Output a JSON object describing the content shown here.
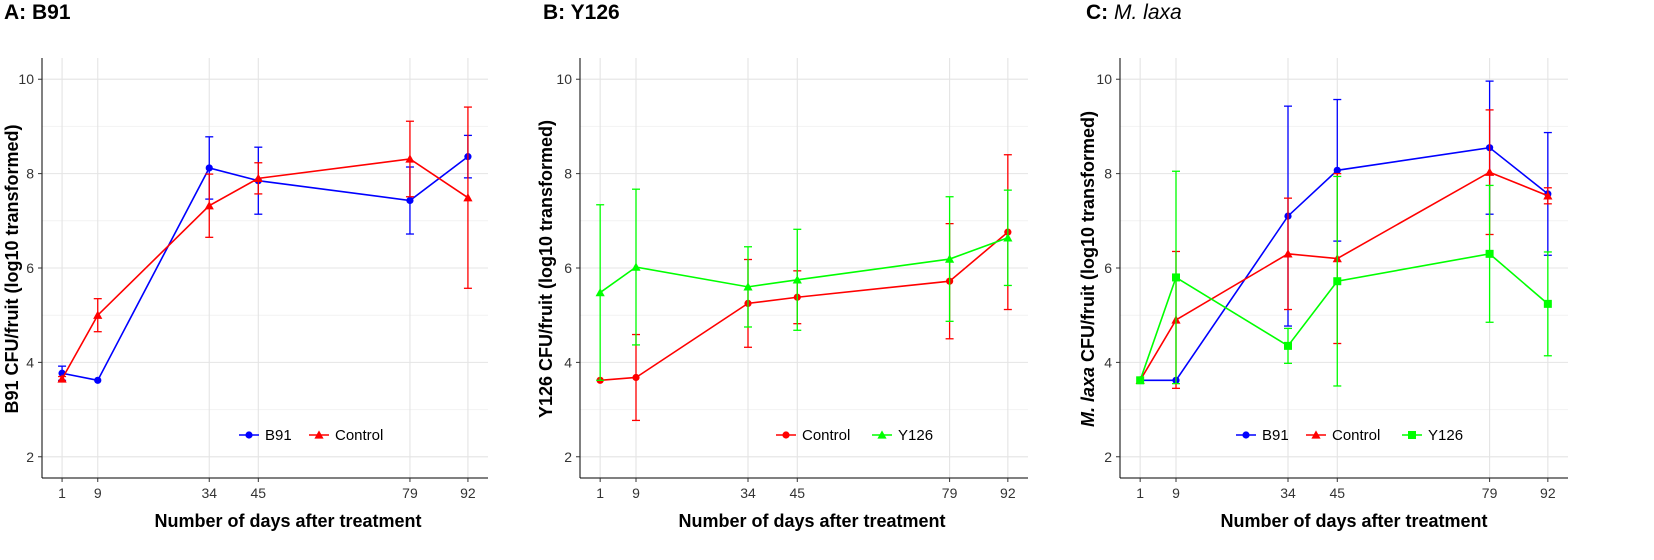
{
  "chart_data": [
    {
      "type": "line",
      "panel_label": "A:",
      "panel_name": "B91",
      "panel_name_italic": false,
      "xlabel": "Number of days after treatment",
      "ylabel": "B91 CFU/fruit (log10 transformed)",
      "ylabel_italic_prefix": "",
      "ylabel_rest": "B91 CFU/fruit (log10 transformed)",
      "x_ticks": [
        1,
        9,
        34,
        45,
        79,
        92
      ],
      "y_ticks": [
        2,
        4,
        6,
        8,
        10
      ],
      "xlim": [
        -3.5,
        96.5
      ],
      "ylim": [
        1.55,
        10.45
      ],
      "grid": true,
      "legend_position": "bottom-right",
      "series": [
        {
          "name": "B91",
          "color": "#0000ff",
          "marker": "circle",
          "x": [
            1,
            9,
            34,
            45,
            79,
            92
          ],
          "y": [
            3.77,
            3.62,
            8.12,
            7.85,
            7.43,
            8.36
          ],
          "err": [
            0.15,
            0.0,
            0.66,
            0.71,
            0.71,
            0.45
          ]
        },
        {
          "name": "Control",
          "color": "#ff0000",
          "marker": "triangle",
          "x": [
            1,
            9,
            34,
            45,
            79,
            92
          ],
          "y": [
            3.65,
            5.0,
            7.32,
            7.9,
            8.31,
            7.49
          ],
          "err": [
            0.05,
            0.35,
            0.67,
            0.33,
            0.8,
            1.92
          ]
        }
      ]
    },
    {
      "type": "line",
      "panel_label": "B:",
      "panel_name": "Y126",
      "panel_name_italic": false,
      "xlabel": "Number of days after treatment",
      "ylabel": "Y126 CFU/fruit (log10 transformed)",
      "ylabel_italic_prefix": "",
      "ylabel_rest": "Y126 CFU/fruit (log10 transformed)",
      "x_ticks": [
        1,
        9,
        34,
        45,
        79,
        92
      ],
      "y_ticks": [
        2,
        4,
        6,
        8,
        10
      ],
      "xlim": [
        -3.5,
        96.5
      ],
      "ylim": [
        1.55,
        10.45
      ],
      "grid": true,
      "legend_position": "bottom-right",
      "series": [
        {
          "name": "Control",
          "color": "#ff0000",
          "marker": "circle",
          "x": [
            1,
            9,
            34,
            45,
            79,
            92
          ],
          "y": [
            3.62,
            3.68,
            5.25,
            5.38,
            5.72,
            6.76
          ],
          "err": [
            0.0,
            0.91,
            0.93,
            0.56,
            1.22,
            1.64
          ]
        },
        {
          "name": "Y126",
          "color": "#00ff00",
          "marker": "triangle",
          "x": [
            1,
            9,
            34,
            45,
            79,
            92
          ],
          "y": [
            5.48,
            6.02,
            5.6,
            5.75,
            6.19,
            6.64
          ],
          "err": [
            1.86,
            1.65,
            0.85,
            1.07,
            1.32,
            1.01
          ]
        }
      ]
    },
    {
      "type": "line",
      "panel_label": "C:",
      "panel_name": "M. laxa",
      "panel_name_italic": true,
      "xlabel": "Number of days after treatment",
      "ylabel": "M. laxa CFU/fruit (log10 transformed)",
      "ylabel_italic_prefix": "M. laxa",
      "ylabel_rest": " CFU/fruit (log10 transformed)",
      "x_ticks": [
        1,
        9,
        34,
        45,
        79,
        92
      ],
      "y_ticks": [
        2,
        4,
        6,
        8,
        10
      ],
      "xlim": [
        -3.5,
        96.5
      ],
      "ylim": [
        1.55,
        10.45
      ],
      "grid": true,
      "legend_position": "bottom-right",
      "series": [
        {
          "name": "B91",
          "color": "#0000ff",
          "marker": "circle",
          "x": [
            1,
            9,
            34,
            45,
            79,
            92
          ],
          "y": [
            3.62,
            3.62,
            7.1,
            8.07,
            8.55,
            7.57
          ],
          "err": [
            0.0,
            0.0,
            2.33,
            1.5,
            1.41,
            1.3
          ]
        },
        {
          "name": "Control",
          "color": "#ff0000",
          "marker": "triangle",
          "x": [
            1,
            9,
            34,
            45,
            79,
            92
          ],
          "y": [
            3.62,
            4.9,
            6.3,
            6.2,
            8.03,
            7.53
          ],
          "err": [
            0.0,
            1.45,
            1.18,
            1.8,
            1.32,
            0.17
          ]
        },
        {
          "name": "Y126",
          "color": "#00ff00",
          "marker": "square",
          "x": [
            1,
            9,
            34,
            45,
            79,
            92
          ],
          "y": [
            3.62,
            5.8,
            4.35,
            5.72,
            6.3,
            5.24
          ],
          "err": [
            0.0,
            2.25,
            0.37,
            2.22,
            1.45,
            1.1
          ]
        }
      ]
    }
  ]
}
